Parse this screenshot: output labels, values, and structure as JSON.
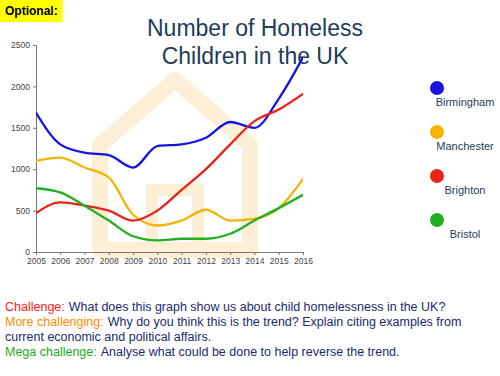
{
  "badge": "Optional:",
  "chart_data": {
    "type": "line",
    "title": "Number of Homeless Children in the UK",
    "x": [
      2005,
      2006,
      2007,
      2008,
      2009,
      2010,
      2011,
      2012,
      2013,
      2014,
      2015,
      2016
    ],
    "xlim": [
      2005,
      2016
    ],
    "xticks": [
      2005,
      2006,
      2007,
      2008,
      2009,
      2010,
      2011,
      2012,
      2013,
      2014,
      2015,
      2016
    ],
    "ylim": [
      0,
      2500
    ],
    "yticks": [
      0,
      500,
      1000,
      1500,
      2000,
      2500
    ],
    "legend": "right",
    "series": [
      {
        "name": "Birmingham",
        "color": "#1515e0",
        "values": [
          1680,
          1300,
          1200,
          1170,
          1020,
          1280,
          1300,
          1380,
          1570,
          1500,
          1850,
          2350
        ]
      },
      {
        "name": "Manchester",
        "color": "#f4b400",
        "values": [
          1100,
          1140,
          1020,
          900,
          450,
          320,
          380,
          510,
          380,
          400,
          530,
          880
        ]
      },
      {
        "name": "Brighton",
        "color": "#e8241a",
        "values": [
          470,
          600,
          560,
          500,
          380,
          500,
          750,
          1000,
          1300,
          1580,
          1720,
          1910
        ]
      },
      {
        "name": "Bristol",
        "color": "#22b022",
        "values": [
          770,
          720,
          560,
          380,
          190,
          140,
          160,
          160,
          220,
          380,
          530,
          690
        ]
      }
    ]
  },
  "tasks": [
    {
      "label": "Challenge:",
      "text": "What does this graph show us about child homelessness in the UK?",
      "color": "#ff1a1a"
    },
    {
      "label": "More challenging:",
      "text": "Why do you think this is the trend? Explain citing examples from current economic and political affairs.",
      "color": "#ff8c00"
    },
    {
      "label": "Mega challenge:",
      "text": "Analyse what could be done to help reverse the trend.",
      "color": "#22aa22"
    }
  ]
}
